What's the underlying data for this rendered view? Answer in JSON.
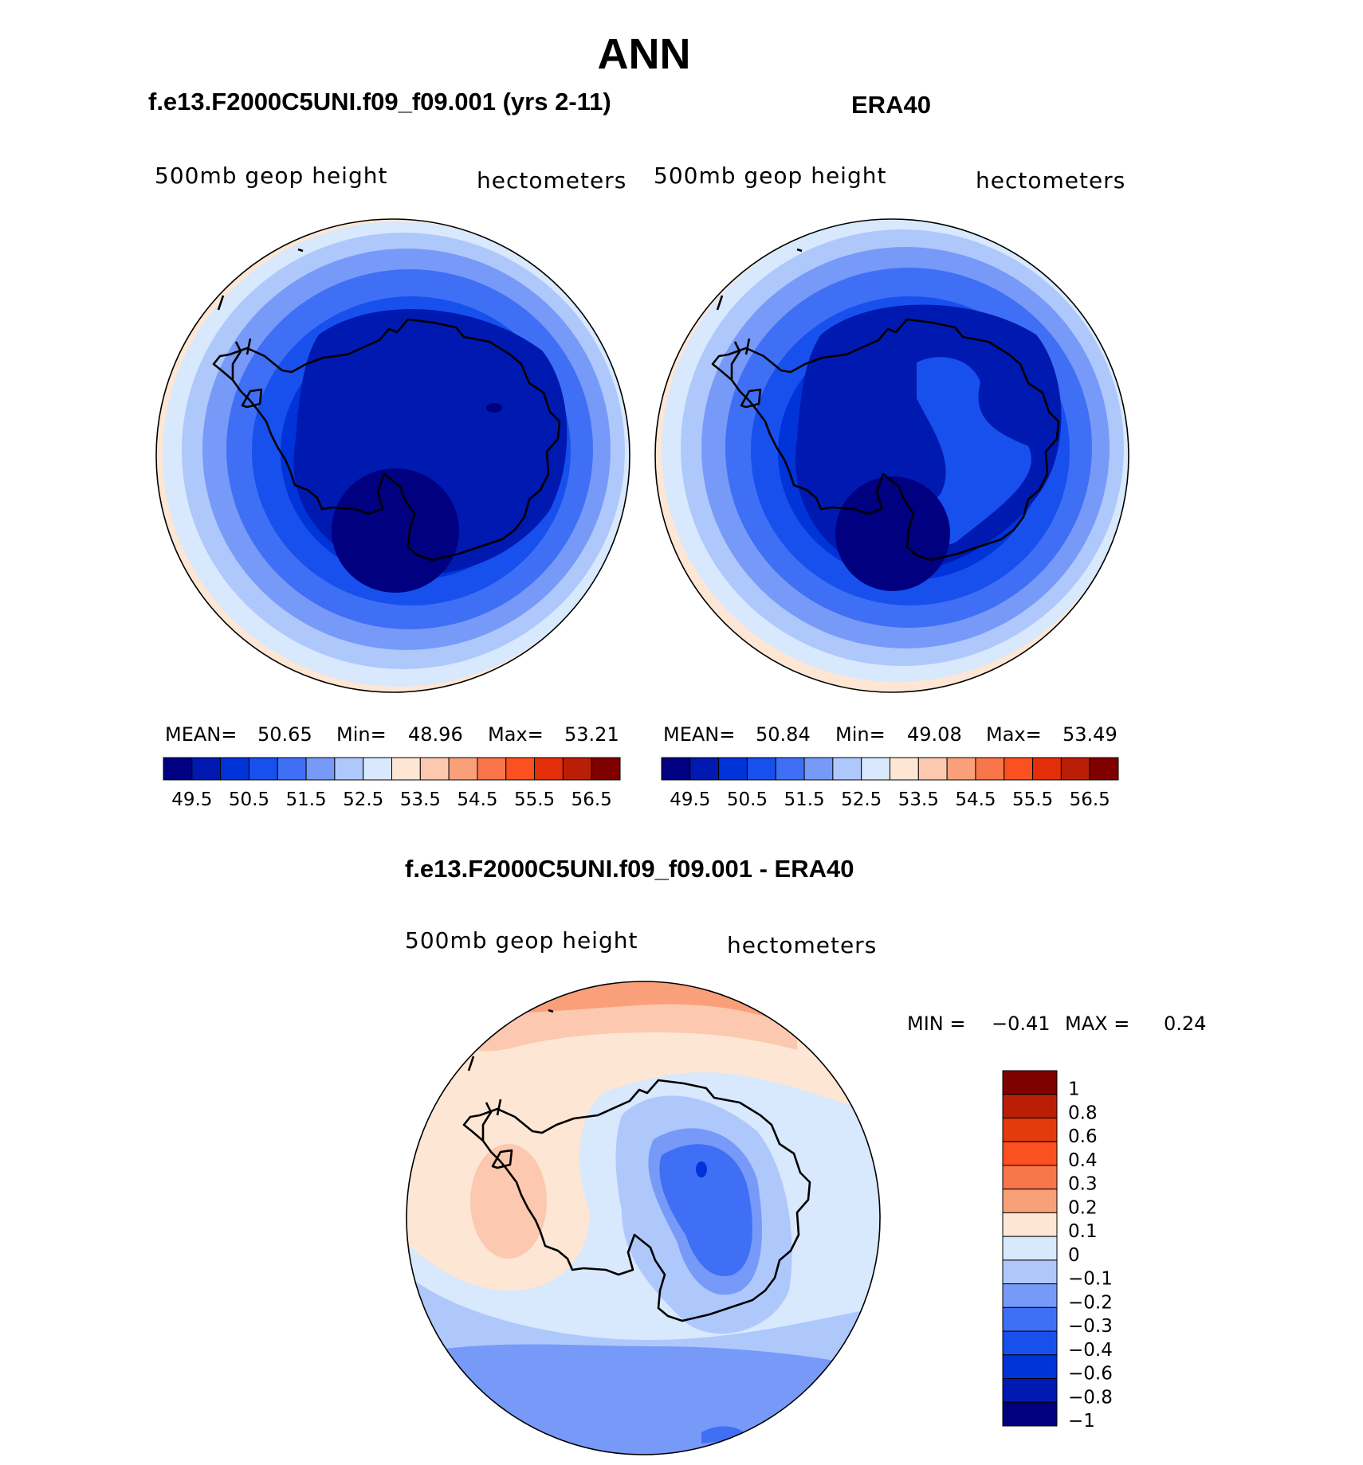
{
  "figure": {
    "title": "ANN",
    "panel_left_title": "f.e13.F2000C5UNI.f09_f09.001 (yrs 2-11)",
    "panel_right_title": "ERA40",
    "panel_diff_title": "f.e13.F2000C5UNI.f09_f09.001 - ERA40"
  },
  "panels": {
    "left": {
      "variable": "500mb geop height",
      "units": "hectometers",
      "stats": {
        "mean_label": "MEAN=",
        "mean": "50.65",
        "min_label": "Min=",
        "min": "48.96",
        "max_label": "Max=",
        "max": "53.21"
      }
    },
    "right": {
      "variable": "500mb geop height",
      "units": "hectometers",
      "stats": {
        "mean_label": "MEAN=",
        "mean": "50.84",
        "min_label": "Min=",
        "min": "49.08",
        "max_label": "Max=",
        "max": "53.49"
      }
    },
    "diff": {
      "variable": "500mb geop height",
      "units": "hectometers",
      "stats": {
        "min_label": "MIN =",
        "min": "−0.41",
        "max_label": "MAX =",
        "max": "0.24"
      }
    }
  },
  "abs_colorbar": {
    "colors": [
      "#000080",
      "#0019b0",
      "#0033d8",
      "#1850ee",
      "#3f6ff4",
      "#779af8",
      "#afc8fb",
      "#d8e8fd",
      "#fde6d4",
      "#fcc8b0",
      "#f9a07a",
      "#f9754a",
      "#fb5020",
      "#e32e0a",
      "#bb1e06",
      "#800000"
    ],
    "labels": [
      "49.5",
      "50.5",
      "51.5",
      "52.5",
      "53.5",
      "54.5",
      "55.5",
      "56.5"
    ]
  },
  "diff_colorbar": {
    "colors_top_to_bottom": [
      "#800000",
      "#bb1e06",
      "#e33b0c",
      "#fb5020",
      "#f9754a",
      "#f9a07a",
      "#fde6d4",
      "#d8e8fd",
      "#afc8fb",
      "#779af8",
      "#3f6ff4",
      "#1850ee",
      "#0033d8",
      "#0019b0",
      "#000080"
    ],
    "labels_top_to_bottom": [
      "1",
      "0.8",
      "0.6",
      "0.4",
      "0.3",
      "0.2",
      "0.1",
      "0",
      "−0.1",
      "−0.2",
      "−0.3",
      "−0.4",
      "−0.6",
      "−0.8",
      "−1"
    ]
  }
}
